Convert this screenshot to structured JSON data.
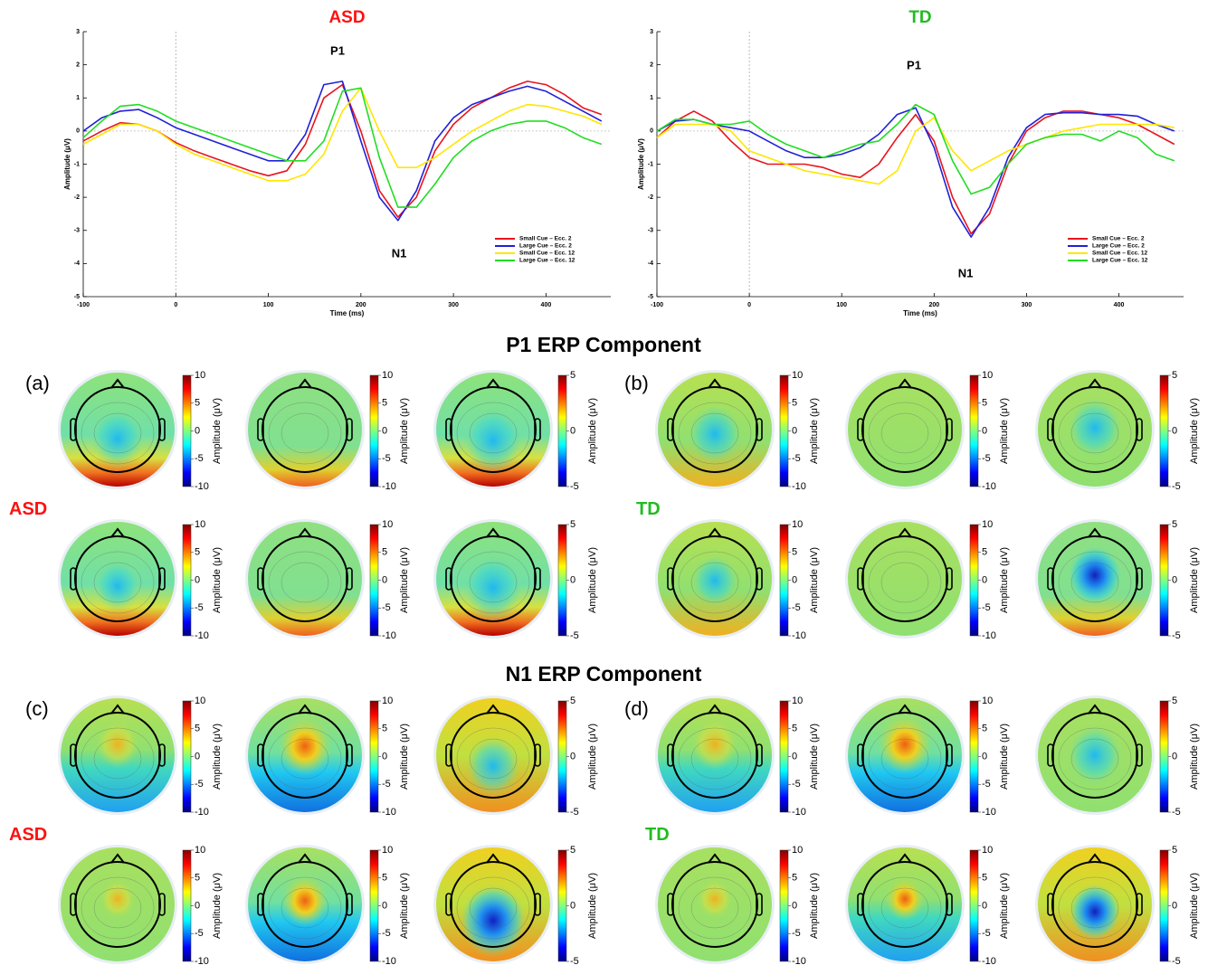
{
  "chart_data": [
    {
      "type": "line",
      "title": "ASD",
      "title_color": "#ff1010",
      "xlabel": "Time (ms)",
      "ylabel": "Amplitude (μV)",
      "x": [
        -100,
        -80,
        -60,
        -40,
        -20,
        0,
        20,
        40,
        60,
        80,
        100,
        120,
        140,
        160,
        180,
        200,
        220,
        240,
        260,
        280,
        300,
        320,
        340,
        360,
        380,
        400,
        420,
        440,
        460
      ],
      "series": [
        {
          "name": "Small Cue – Ecc. 2",
          "color": "#e8141e",
          "values": [
            -0.3,
            0.0,
            0.25,
            0.2,
            0.0,
            -0.35,
            -0.6,
            -0.8,
            -1.0,
            -1.2,
            -1.35,
            -1.2,
            -0.4,
            1.0,
            1.4,
            0.0,
            -1.8,
            -2.6,
            -2.0,
            -0.6,
            0.2,
            0.7,
            1.0,
            1.3,
            1.5,
            1.4,
            1.1,
            0.7,
            0.5
          ]
        },
        {
          "name": "Large Cue – Ecc. 2",
          "color": "#2020d8",
          "values": [
            0.0,
            0.4,
            0.6,
            0.65,
            0.4,
            0.1,
            -0.1,
            -0.3,
            -0.5,
            -0.7,
            -0.9,
            -0.9,
            -0.1,
            1.4,
            1.5,
            -0.3,
            -2.0,
            -2.7,
            -1.8,
            -0.3,
            0.4,
            0.8,
            1.0,
            1.2,
            1.35,
            1.2,
            0.9,
            0.6,
            0.3
          ]
        },
        {
          "name": "Small Cue – Ecc. 12",
          "color": "#ffe600",
          "values": [
            -0.4,
            -0.1,
            0.2,
            0.2,
            0.0,
            -0.4,
            -0.7,
            -0.9,
            -1.1,
            -1.3,
            -1.5,
            -1.5,
            -1.3,
            -0.7,
            0.6,
            1.3,
            0.0,
            -1.1,
            -1.1,
            -0.8,
            -0.4,
            0.0,
            0.3,
            0.6,
            0.8,
            0.75,
            0.6,
            0.45,
            0.2
          ]
        },
        {
          "name": "Large Cue – Ecc. 12",
          "color": "#22dd22",
          "values": [
            -0.2,
            0.3,
            0.75,
            0.8,
            0.6,
            0.3,
            0.1,
            -0.1,
            -0.3,
            -0.5,
            -0.7,
            -0.9,
            -0.9,
            -0.3,
            1.2,
            1.3,
            -0.8,
            -2.3,
            -2.3,
            -1.6,
            -0.8,
            -0.3,
            0.0,
            0.2,
            0.3,
            0.3,
            0.1,
            -0.2,
            -0.4
          ]
        }
      ],
      "xlim": [
        -100,
        470
      ],
      "xticks": [
        -100,
        0,
        100,
        200,
        300,
        400
      ],
      "ylim": [
        -5,
        3
      ],
      "yticks": [
        -5,
        -4,
        -3,
        -2,
        -1,
        0,
        1,
        2,
        3
      ],
      "hlines": [
        0
      ],
      "vlines": [
        0
      ],
      "legend": "lower right",
      "annotations": [
        "P1",
        "N1"
      ]
    },
    {
      "type": "line",
      "title": "TD",
      "title_color": "#22bb22",
      "xlabel": "Time (ms)",
      "ylabel": "Amplitude (μV)",
      "x": [
        -100,
        -80,
        -60,
        -40,
        -20,
        0,
        20,
        40,
        60,
        80,
        100,
        120,
        140,
        160,
        180,
        200,
        220,
        240,
        260,
        280,
        300,
        320,
        340,
        360,
        380,
        400,
        420,
        440,
        460
      ],
      "series": [
        {
          "name": "Small Cue – Ecc. 2",
          "color": "#e8141e",
          "values": [
            -0.2,
            0.3,
            0.6,
            0.3,
            -0.3,
            -0.8,
            -1.0,
            -1.0,
            -1.0,
            -1.1,
            -1.3,
            -1.4,
            -1.0,
            -0.2,
            0.5,
            -0.3,
            -2.0,
            -3.1,
            -2.5,
            -1.0,
            0.0,
            0.4,
            0.6,
            0.6,
            0.5,
            0.4,
            0.2,
            -0.1,
            -0.4
          ]
        },
        {
          "name": "Large Cue – Ecc. 2",
          "color": "#2020d8",
          "values": [
            0.0,
            0.3,
            0.35,
            0.2,
            0.1,
            0.0,
            -0.3,
            -0.6,
            -0.8,
            -0.8,
            -0.7,
            -0.5,
            -0.1,
            0.5,
            0.7,
            -0.5,
            -2.3,
            -3.2,
            -2.3,
            -0.8,
            0.1,
            0.5,
            0.55,
            0.55,
            0.5,
            0.5,
            0.45,
            0.2,
            0.0
          ]
        },
        {
          "name": "Small Cue – Ecc. 12",
          "color": "#ffe600",
          "values": [
            -0.2,
            0.2,
            0.2,
            0.2,
            0.0,
            -0.6,
            -0.8,
            -1.0,
            -1.2,
            -1.3,
            -1.4,
            -1.5,
            -1.6,
            -1.2,
            0.0,
            0.4,
            -0.6,
            -1.2,
            -0.9,
            -0.6,
            -0.4,
            -0.2,
            0.0,
            0.1,
            0.2,
            0.2,
            0.2,
            0.2,
            0.1
          ]
        },
        {
          "name": "Large Cue – Ecc. 12",
          "color": "#22dd22",
          "values": [
            0.0,
            0.35,
            0.35,
            0.2,
            0.2,
            0.3,
            -0.1,
            -0.4,
            -0.6,
            -0.8,
            -0.6,
            -0.4,
            -0.3,
            0.2,
            0.8,
            0.5,
            -0.9,
            -1.9,
            -1.7,
            -1.0,
            -0.4,
            -0.2,
            -0.1,
            -0.1,
            -0.3,
            0.0,
            -0.2,
            -0.7,
            -0.9
          ]
        }
      ],
      "xlim": [
        -100,
        470
      ],
      "xticks": [
        -100,
        0,
        100,
        200,
        300,
        400
      ],
      "ylim": [
        -5,
        3
      ],
      "yticks": [
        -5,
        -4,
        -3,
        -2,
        -1,
        0,
        1,
        2,
        3
      ],
      "hlines": [
        0
      ],
      "vlines": [
        0
      ],
      "legend": "lower right",
      "annotations": [
        "P1",
        "N1"
      ]
    }
  ],
  "topographies": [
    {
      "title": "P1 ERP Component",
      "panels": [
        {
          "label": "(a)",
          "group": "ASD",
          "group_color": "#ff1010",
          "maps": [
            {
              "cbar_ticks": [
                10,
                5,
                0,
                -5,
                -10
              ],
              "cbar_label": "Amplitude (μV)"
            },
            {
              "cbar_ticks": [
                10,
                5,
                0,
                -5,
                -10
              ],
              "cbar_label": "Amplitude (μV)"
            },
            {
              "cbar_ticks": [
                5,
                0,
                -5
              ],
              "cbar_label": "Amplitude (μV)"
            },
            {
              "cbar_ticks": [
                10,
                5,
                0,
                -5,
                -10
              ],
              "cbar_label": "Amplitude (μV)"
            },
            {
              "cbar_ticks": [
                10,
                5,
                0,
                -5,
                -10
              ],
              "cbar_label": "Amplitude (μV)"
            },
            {
              "cbar_ticks": [
                5,
                0,
                -5
              ],
              "cbar_label": "Amplitude (μV)"
            }
          ]
        },
        {
          "label": "(b)",
          "group": "TD",
          "group_color": "#22bb22",
          "maps": [
            {
              "cbar_ticks": [
                10,
                5,
                0,
                -5,
                -10
              ],
              "cbar_label": "Amplitude (μV)"
            },
            {
              "cbar_ticks": [
                10,
                5,
                0,
                -5,
                -10
              ],
              "cbar_label": "Amplitude (μV)"
            },
            {
              "cbar_ticks": [
                5,
                0,
                -5
              ],
              "cbar_label": "Amplitude (μV)"
            },
            {
              "cbar_ticks": [
                10,
                5,
                0,
                -5,
                -10
              ],
              "cbar_label": "Amplitude (μV)"
            },
            {
              "cbar_ticks": [
                10,
                5,
                0,
                -5,
                -10
              ],
              "cbar_label": "Amplitude (μV)"
            },
            {
              "cbar_ticks": [
                5,
                0,
                -5
              ],
              "cbar_label": "Amplitude (μV)"
            }
          ]
        }
      ]
    },
    {
      "title": "N1 ERP Component",
      "panels": [
        {
          "label": "(c)",
          "group": "ASD",
          "group_color": "#ff1010",
          "maps": [
            {
              "cbar_ticks": [
                10,
                5,
                0,
                -5,
                -10
              ],
              "cbar_label": "Amplitude (μV)"
            },
            {
              "cbar_ticks": [
                10,
                5,
                0,
                -5,
                -10
              ],
              "cbar_label": "Amplitude (μV)"
            },
            {
              "cbar_ticks": [
                5,
                0,
                -5
              ],
              "cbar_label": "Amplitude (μV)"
            },
            {
              "cbar_ticks": [
                10,
                5,
                0,
                -5,
                -10
              ],
              "cbar_label": "Amplitude (μV)"
            },
            {
              "cbar_ticks": [
                10,
                5,
                0,
                -5,
                -10
              ],
              "cbar_label": "Amplitude (μV)"
            },
            {
              "cbar_ticks": [
                5,
                0,
                -5
              ],
              "cbar_label": "Amplitude (μV)"
            }
          ]
        },
        {
          "label": "(d)",
          "group": "TD",
          "group_color": "#22bb22",
          "maps": [
            {
              "cbar_ticks": [
                10,
                5,
                0,
                -5,
                -10
              ],
              "cbar_label": "Amplitude (μV)"
            },
            {
              "cbar_ticks": [
                10,
                5,
                0,
                -5,
                -10
              ],
              "cbar_label": "Amplitude (μV)"
            },
            {
              "cbar_ticks": [
                5,
                0,
                -5
              ],
              "cbar_label": "Amplitude (μV)"
            },
            {
              "cbar_ticks": [
                10,
                5,
                0,
                -5,
                -10
              ],
              "cbar_label": "Amplitude (μV)"
            },
            {
              "cbar_ticks": [
                10,
                5,
                0,
                -5,
                -10
              ],
              "cbar_label": "Amplitude (μV)"
            },
            {
              "cbar_ticks": [
                5,
                0,
                -5
              ],
              "cbar_label": "Amplitude (μV)"
            }
          ]
        }
      ]
    }
  ]
}
